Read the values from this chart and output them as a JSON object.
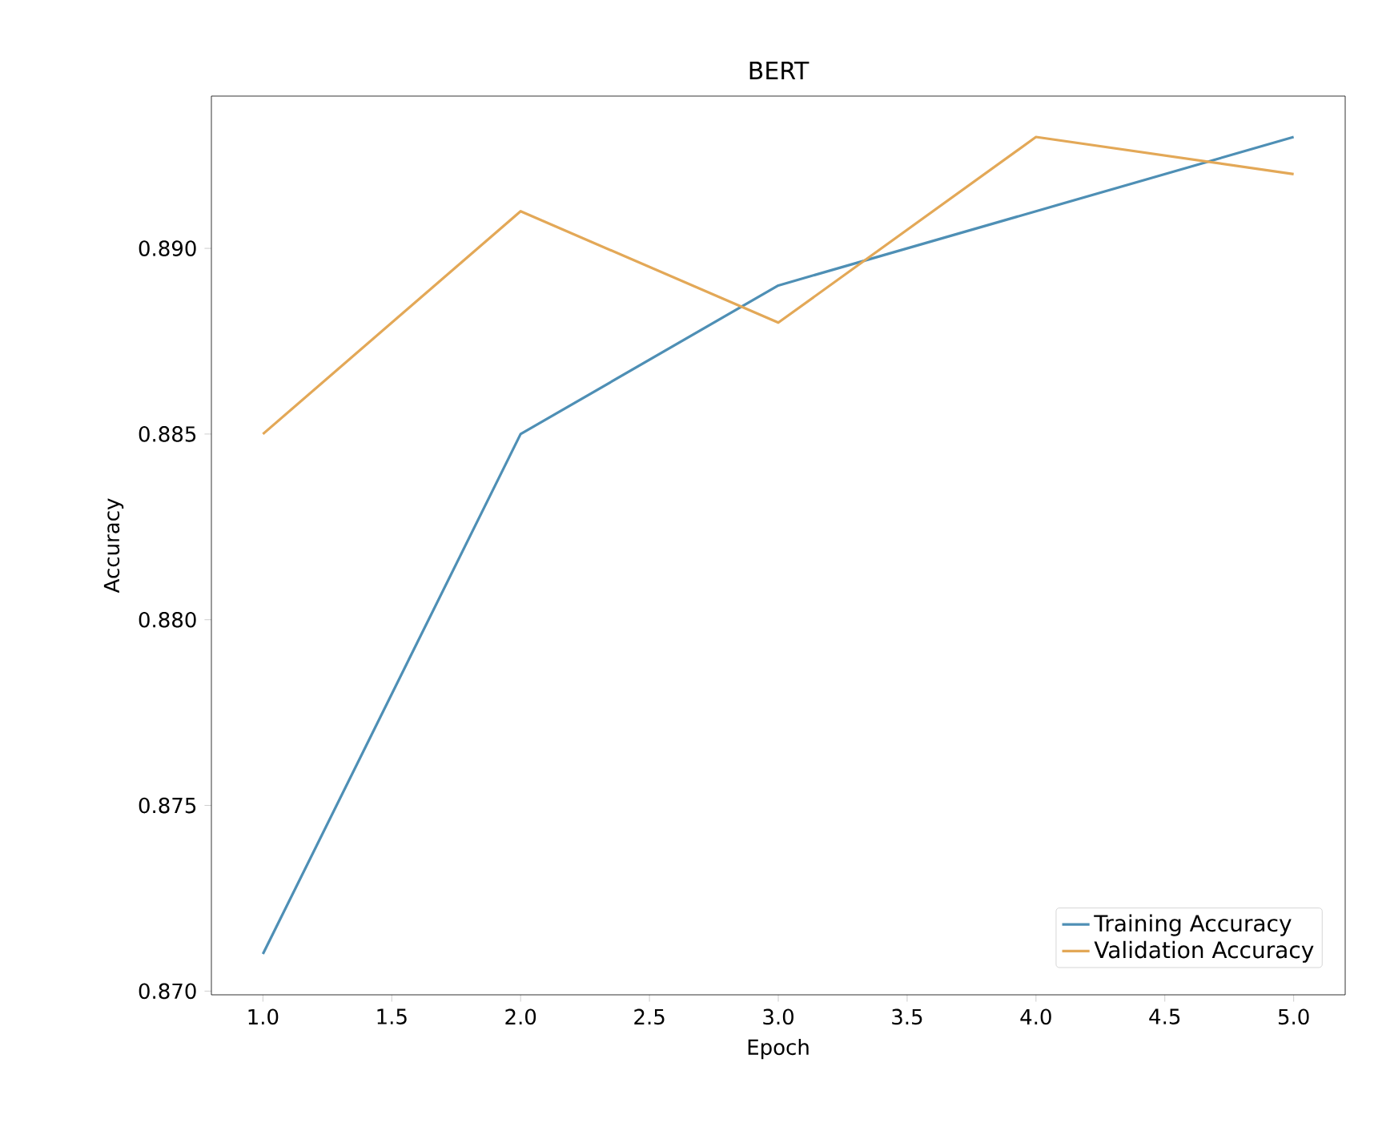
{
  "chart_data": {
    "type": "line",
    "title": "BERT",
    "xlabel": "Epoch",
    "ylabel": "Accuracy",
    "x": [
      1,
      2,
      3,
      4,
      5
    ],
    "series": [
      {
        "name": "Training Accuracy",
        "color": "#4e8fb5",
        "values": [
          0.871,
          0.885,
          0.889,
          0.891,
          0.893
        ]
      },
      {
        "name": "Validation Accuracy",
        "color": "#e3a857",
        "values": [
          0.885,
          0.891,
          0.888,
          0.893,
          0.892
        ]
      }
    ],
    "xlim": [
      0.8,
      5.2
    ],
    "ylim": [
      0.8699,
      0.8941
    ],
    "xticks": [
      {
        "value": 1,
        "label": "1.0"
      },
      1.5,
      {
        "value": 2,
        "label": "2.0"
      },
      2.5,
      {
        "value": 3,
        "label": "3.0"
      },
      3.5,
      {
        "value": 4,
        "label": "4.0"
      },
      4.5,
      {
        "value": 5,
        "label": "5.0"
      }
    ],
    "yticks": [
      {
        "value": 0.87,
        "label": "0.870"
      },
      0.875,
      {
        "value": 0.88,
        "label": "0.880"
      },
      0.885,
      {
        "value": 0.89,
        "label": "0.890"
      }
    ],
    "legend": "bottom right",
    "grid": false,
    "line_style": "solid",
    "marker": "none"
  }
}
